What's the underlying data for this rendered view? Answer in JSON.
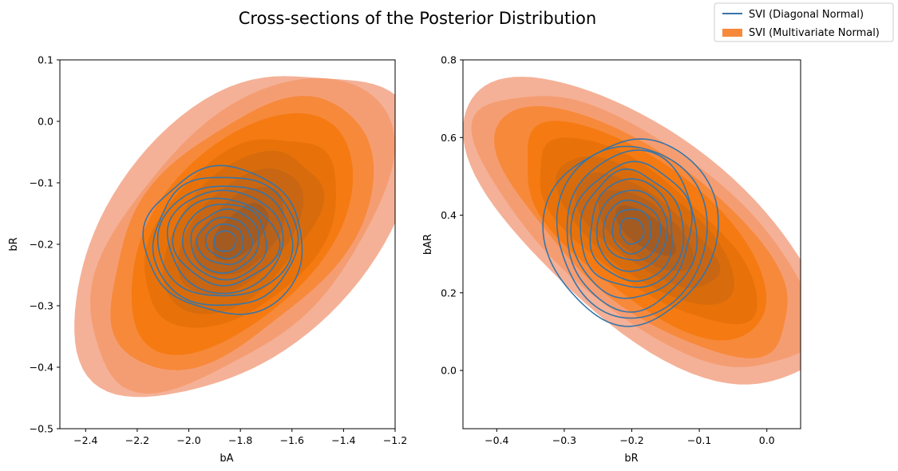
{
  "title": "Cross-sections of the Posterior Distribution",
  "legend": {
    "placement": "upper-right",
    "entries": [
      {
        "label": "SVI (Diagonal Normal)"
      },
      {
        "label": "SVI (Multivariate Normal)"
      }
    ]
  },
  "colors": {
    "contour_line": "#3775a8",
    "fill_levels": [
      "#f4b197",
      "#f59d72",
      "#f7893b",
      "#f57a12",
      "#e87209",
      "#d86c0c",
      "#c86614",
      "#b7611b",
      "#a45b22"
    ]
  },
  "chart_data": [
    {
      "type": "kde-contour",
      "xlabel": "bA",
      "ylabel": "bR",
      "xlim": [
        -2.5,
        -1.2
      ],
      "ylim": [
        -0.5,
        0.1
      ],
      "xticks": [
        -2.4,
        -2.2,
        -2.0,
        -1.8,
        -1.6,
        -1.4,
        -1.2
      ],
      "xtick_labels": [
        "−2.4",
        "−2.2",
        "−2.0",
        "−1.8",
        "−1.6",
        "−1.4",
        "−1.2"
      ],
      "yticks": [
        0.1,
        0.0,
        -0.1,
        -0.2,
        -0.3,
        -0.4,
        -0.5
      ],
      "ytick_labels": [
        "0.1",
        "0.0",
        "−0.1",
        "−0.2",
        "−0.3",
        "−0.4",
        "−0.5"
      ],
      "series": [
        {
          "name": "SVI (Diagonal Normal)",
          "style": "lines",
          "center": [
            -1.86,
            -0.195
          ],
          "sd": [
            0.115,
            0.043
          ],
          "correlation": 0.0,
          "levels": 10
        },
        {
          "name": "SVI (Multivariate Normal)",
          "style": "filled",
          "center": [
            -1.8,
            -0.18
          ],
          "sd": [
            0.21,
            0.09
          ],
          "correlation": 0.5,
          "levels": 9
        }
      ]
    },
    {
      "type": "kde-contour",
      "xlabel": "bR",
      "ylabel": "bAR",
      "xlim": [
        -0.45,
        0.05
      ],
      "ylim": [
        -0.15,
        0.8
      ],
      "xticks": [
        -0.4,
        -0.3,
        -0.2,
        -0.1,
        0.0
      ],
      "xtick_labels": [
        "−0.4",
        "−0.3",
        "−0.2",
        "−0.1",
        "0.0"
      ],
      "yticks": [
        0.8,
        0.6,
        0.4,
        0.2,
        0.0
      ],
      "ytick_labels": [
        "0.8",
        "0.6",
        "0.4",
        "0.2",
        "0.0"
      ],
      "series": [
        {
          "name": "SVI (Diagonal Normal)",
          "style": "lines",
          "center": [
            -0.2,
            0.36
          ],
          "sd": [
            0.045,
            0.09
          ],
          "correlation": 0.0,
          "levels": 10
        },
        {
          "name": "SVI (Multivariate Normal)",
          "style": "filled",
          "center": [
            -0.18,
            0.36
          ],
          "sd": [
            0.09,
            0.13
          ],
          "correlation": -0.7,
          "levels": 9
        }
      ]
    }
  ]
}
